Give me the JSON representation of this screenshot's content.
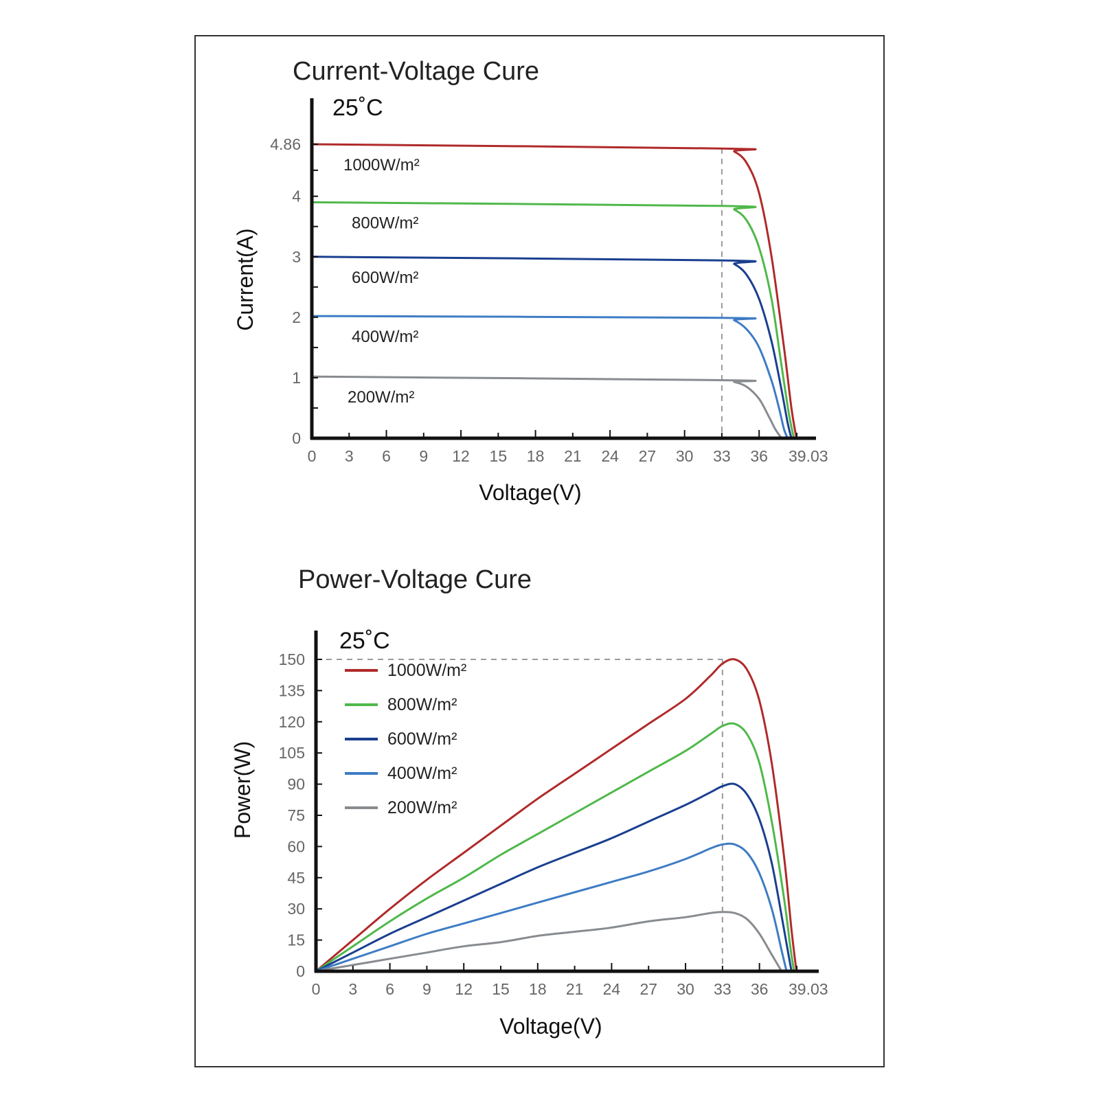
{
  "chart_data": [
    {
      "id": "iv",
      "type": "line",
      "title": "Current-Voltage Cure",
      "condition_label": "25˚C",
      "xlabel": "Voltage(V)",
      "ylabel": "Current(A)",
      "xlim": [
        0,
        39.03
      ],
      "ylim": [
        0,
        4.86
      ],
      "x_ticks": [
        "0",
        "3",
        "6",
        "9",
        "12",
        "15",
        "18",
        "21",
        "24",
        "27",
        "30",
        "33",
        "36",
        "39.03"
      ],
      "y_ticks": [
        "0",
        "1",
        "2",
        "3",
        "4",
        "4.86"
      ],
      "reference_line": {
        "x": 33
      },
      "grid": false,
      "legend": "inline",
      "series": [
        {
          "name": "1000W/m²",
          "color": "#b02a2a",
          "x": [
            0,
            33,
            34,
            35,
            36,
            37,
            38,
            38.6,
            39.0
          ],
          "y": [
            4.86,
            4.79,
            4.74,
            4.55,
            4.05,
            3.0,
            1.5,
            0.5,
            0
          ]
        },
        {
          "name": "800W/m²",
          "color": "#4fb84a",
          "x": [
            0,
            33,
            34,
            35,
            36,
            37,
            37.8,
            38.4,
            38.8
          ],
          "y": [
            3.9,
            3.84,
            3.78,
            3.6,
            3.15,
            2.3,
            1.2,
            0.4,
            0
          ]
        },
        {
          "name": "600W/m²",
          "color": "#1a3f8f",
          "x": [
            0,
            33,
            34,
            35,
            36,
            37,
            37.8,
            38.3,
            38.6
          ],
          "y": [
            3.0,
            2.94,
            2.88,
            2.7,
            2.3,
            1.6,
            0.8,
            0.25,
            0
          ]
        },
        {
          "name": "400W/m²",
          "color": "#3d7cc4",
          "x": [
            0,
            33,
            34,
            35,
            36,
            37,
            37.6,
            38.0,
            38.3
          ],
          "y": [
            2.02,
            1.99,
            1.95,
            1.8,
            1.5,
            0.95,
            0.5,
            0.15,
            0
          ]
        },
        {
          "name": "200W/m²",
          "color": "#888b8f",
          "x": [
            0,
            33,
            34,
            35,
            36,
            36.8,
            37.3,
            37.8
          ],
          "y": [
            1.02,
            0.96,
            0.93,
            0.85,
            0.65,
            0.35,
            0.15,
            0
          ]
        }
      ]
    },
    {
      "id": "pv",
      "type": "line",
      "title": "Power-Voltage Cure",
      "condition_label": "25˚C",
      "xlabel": "Voltage(V)",
      "ylabel": "Power(W)",
      "xlim": [
        0,
        39.03
      ],
      "ylim": [
        0,
        150
      ],
      "x_ticks": [
        "0",
        "3",
        "6",
        "9",
        "12",
        "15",
        "18",
        "21",
        "24",
        "27",
        "30",
        "33",
        "36",
        "39.03"
      ],
      "y_ticks": [
        "0",
        "15",
        "30",
        "45",
        "60",
        "75",
        "90",
        "105",
        "120",
        "135",
        "150"
      ],
      "reference_line": {
        "x": 33,
        "y": 150
      },
      "grid": false,
      "legend": "top-left",
      "series": [
        {
          "name": "1000W/m²",
          "color": "#b02a2a",
          "x": [
            0,
            3,
            6,
            9,
            12,
            15,
            18,
            21,
            24,
            27,
            30,
            32,
            33,
            34,
            35,
            36,
            37,
            38,
            38.6,
            39.0
          ],
          "y": [
            0,
            15,
            30,
            44,
            57,
            70,
            83,
            95,
            107,
            119,
            131,
            142,
            148,
            150,
            145,
            130,
            100,
            55,
            20,
            0
          ]
        },
        {
          "name": "800W/m²",
          "color": "#4fb84a",
          "x": [
            0,
            3,
            6,
            9,
            12,
            15,
            18,
            21,
            24,
            27,
            30,
            32,
            33,
            34,
            35,
            36,
            37,
            38,
            38.5,
            38.8
          ],
          "y": [
            0,
            12,
            24,
            35,
            45,
            56,
            66,
            76,
            86,
            96,
            106,
            114,
            118,
            119,
            114,
            100,
            72,
            35,
            12,
            0
          ]
        },
        {
          "name": "600W/m²",
          "color": "#1a3f8f",
          "x": [
            0,
            3,
            6,
            9,
            12,
            15,
            18,
            21,
            24,
            27,
            30,
            32,
            33,
            34,
            35,
            36,
            37,
            38,
            38.6
          ],
          "y": [
            0,
            9,
            18,
            26,
            34,
            42,
            50,
            57,
            64,
            72,
            80,
            86,
            89,
            90,
            85,
            73,
            52,
            20,
            0
          ]
        },
        {
          "name": "400W/m²",
          "color": "#3d7cc4",
          "x": [
            0,
            3,
            6,
            9,
            12,
            15,
            18,
            21,
            24,
            27,
            30,
            32,
            33,
            34,
            35,
            36,
            37,
            37.8,
            38.2
          ],
          "y": [
            0,
            6,
            12,
            18,
            23,
            28,
            33,
            38,
            43,
            48,
            54,
            59,
            61,
            61,
            57,
            47,
            30,
            10,
            0
          ]
        },
        {
          "name": "200W/m²",
          "color": "#888b8f",
          "x": [
            0,
            3,
            6,
            9,
            12,
            15,
            18,
            21,
            24,
            27,
            30,
            32,
            33,
            34,
            35,
            36,
            37,
            37.8
          ],
          "y": [
            0,
            3,
            6,
            9,
            12,
            14,
            17,
            19,
            21,
            24,
            26,
            28,
            28.5,
            28,
            25,
            18,
            8,
            0
          ]
        }
      ]
    }
  ]
}
